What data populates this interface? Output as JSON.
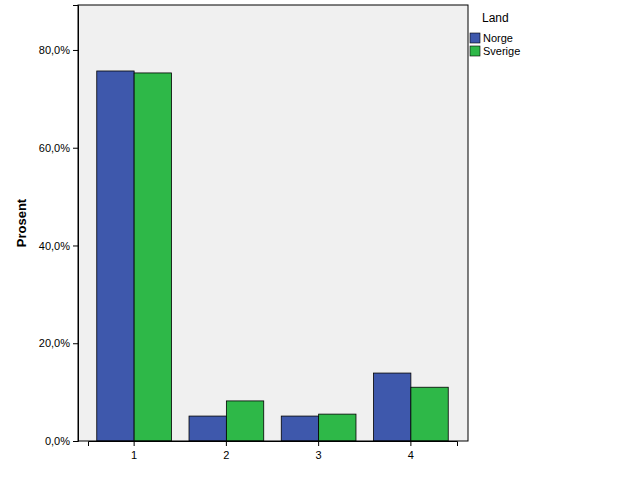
{
  "chart_data": {
    "type": "bar",
    "y_label": "Prosent",
    "legend_title": "Land",
    "categories": [
      "1",
      "2",
      "3",
      "4"
    ],
    "series": [
      {
        "name": "Norge",
        "color": "#3e58ac",
        "values": [
          75.7,
          5.1,
          5.1,
          13.9
        ]
      },
      {
        "name": "Sverige",
        "color": "#2eb848",
        "values": [
          75.3,
          8.2,
          5.5,
          11.0
        ]
      }
    ],
    "ylim": [
      0,
      89.2
    ],
    "yticks": [
      {
        "value": 0,
        "label": "0,0%"
      },
      {
        "value": 20,
        "label": "20,0%"
      },
      {
        "value": 40,
        "label": "40,0%"
      },
      {
        "value": 60,
        "label": "60,0%"
      },
      {
        "value": 80,
        "label": "80,0%"
      }
    ],
    "legend": "right"
  }
}
